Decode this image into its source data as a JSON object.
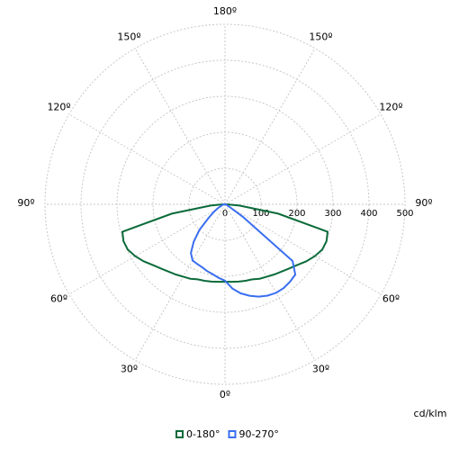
{
  "chart_data": {
    "type": "polar",
    "angle_ticks": [
      {
        "value": 0,
        "label": "0º"
      },
      {
        "value": 30,
        "label": "30º"
      },
      {
        "value": -30,
        "label": "30º"
      },
      {
        "value": 60,
        "label": "60º"
      },
      {
        "value": -60,
        "label": "60º"
      },
      {
        "value": 90,
        "label": "90º"
      },
      {
        "value": -90,
        "label": "90º"
      },
      {
        "value": 120,
        "label": "120º"
      },
      {
        "value": -120,
        "label": "120º"
      },
      {
        "value": 150,
        "label": "150º"
      },
      {
        "value": -150,
        "label": "150º"
      },
      {
        "value": 180,
        "label": "180º"
      }
    ],
    "rlim": [
      0,
      500
    ],
    "rticks": [
      0,
      100,
      200,
      300,
      400,
      500
    ],
    "unit": "cd/klm",
    "x": [
      -90,
      -85,
      -80,
      -75,
      -70,
      -65,
      -60,
      -55,
      -50,
      -45,
      -40,
      -35,
      -30,
      -25,
      -20,
      -15,
      -10,
      -5,
      0,
      5,
      10,
      15,
      20,
      25,
      30,
      35,
      40,
      45,
      50,
      55,
      60,
      65,
      70,
      75,
      80,
      85,
      90
    ],
    "series": [
      {
        "name": "0-180°",
        "color": "#0b6b3a",
        "values": [
          5,
          40,
          150,
          295,
          300,
          298,
          288,
          276,
          262,
          252,
          244,
          238,
          232,
          228,
          222,
          220,
          218,
          216,
          215,
          216,
          218,
          220,
          222,
          228,
          232,
          238,
          244,
          252,
          262,
          276,
          288,
          298,
          300,
          295,
          150,
          40,
          5
        ]
      },
      {
        "name": "90-270°",
        "color": "#3a6ef0",
        "values": [
          0,
          2,
          5,
          7,
          10,
          15,
          25,
          40,
          60,
          100,
          135,
          165,
          180,
          183,
          186,
          192,
          197,
          205,
          212,
          235,
          251,
          263,
          273,
          280,
          284,
          284,
          281,
          276,
          245,
          60,
          15,
          8,
          5,
          3,
          2,
          1,
          0
        ]
      }
    ]
  }
}
